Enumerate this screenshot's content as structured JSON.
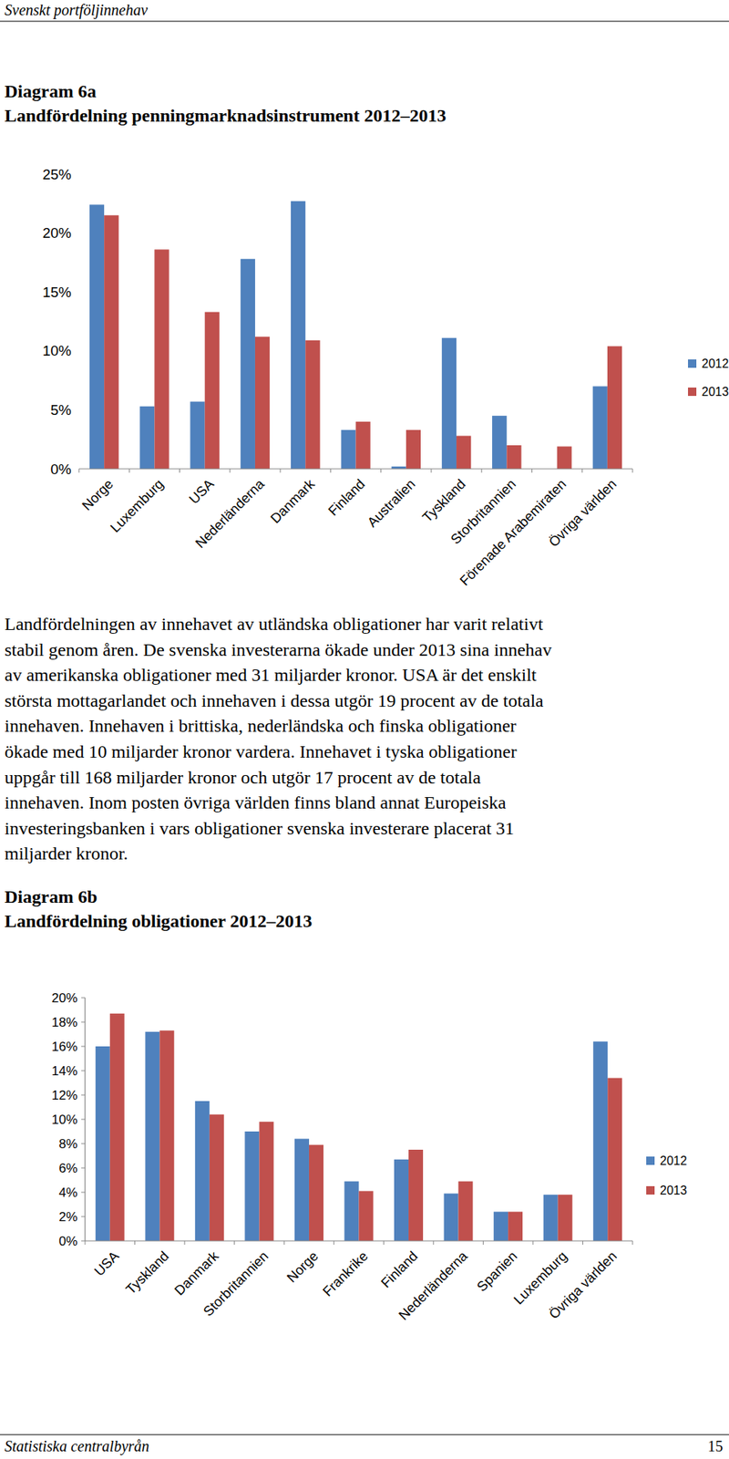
{
  "header": "Svenskt portföljinnehav",
  "chart_data": [
    {
      "type": "bar",
      "title": "Diagram 6a",
      "subtitle": "Landfördelning penningmarknadsinstrument 2012–2013",
      "categories": [
        "Norge",
        "Luxemburg",
        "USA",
        "Nederländerna",
        "Danmark",
        "Finland",
        "Australien",
        "Tyskland",
        "Storbritannien",
        "Förenade Arabemiraten",
        "Övriga världen"
      ],
      "series": [
        {
          "name": "2012",
          "color": "#4f81bd",
          "values": [
            22.4,
            5.3,
            5.7,
            17.8,
            22.7,
            3.3,
            0.2,
            11.1,
            4.5,
            0,
            7.0
          ]
        },
        {
          "name": "2013",
          "color": "#c0504d",
          "values": [
            21.5,
            18.6,
            13.3,
            11.2,
            10.9,
            4.0,
            3.3,
            2.8,
            2.0,
            1.9,
            10.4
          ]
        }
      ],
      "ylim": [
        0,
        25
      ],
      "yticks": [
        {
          "value": 0,
          "label": "0%"
        },
        {
          "value": 5,
          "label": "5%"
        },
        {
          "value": 10,
          "label": "10%"
        },
        {
          "value": 15,
          "label": "15%"
        },
        {
          "value": 20,
          "label": "20%"
        },
        {
          "value": 25,
          "label": "25%"
        }
      ],
      "grid": false,
      "legend": "right"
    },
    {
      "type": "bar",
      "title": "Diagram 6b",
      "subtitle": "Landfördelning obligationer 2012–2013",
      "categories": [
        "USA",
        "Tyskland",
        "Danmark",
        "Storbritannien",
        "Norge",
        "Frankrike",
        "Finland",
        "Nederländerna",
        "Spanien",
        "Luxemburg",
        "Övriga världen"
      ],
      "series": [
        {
          "name": "2012",
          "color": "#4f81bd",
          "values": [
            16.0,
            17.2,
            11.5,
            9.0,
            8.4,
            4.9,
            6.7,
            3.9,
            2.4,
            3.8,
            16.4
          ]
        },
        {
          "name": "2013",
          "color": "#c0504d",
          "values": [
            18.7,
            17.3,
            10.4,
            9.8,
            7.9,
            4.1,
            7.5,
            4.9,
            2.4,
            3.8,
            13.4
          ]
        }
      ],
      "ylim": [
        0,
        20
      ],
      "yticks": [
        {
          "value": 0,
          "label": "0%"
        },
        {
          "value": 2,
          "label": "2%"
        },
        {
          "value": 4,
          "label": "4%"
        },
        {
          "value": 6,
          "label": "6%"
        },
        {
          "value": 8,
          "label": "8%"
        },
        {
          "value": 10,
          "label": "10%"
        },
        {
          "value": 12,
          "label": "12%"
        },
        {
          "value": 14,
          "label": "14%"
        },
        {
          "value": 16,
          "label": "16%"
        },
        {
          "value": 18,
          "label": "18%"
        },
        {
          "value": 20,
          "label": "20%"
        }
      ],
      "grid": false,
      "legend": "right"
    }
  ],
  "text": [
    "Landfördelningen av innehavet av utländska obligationer har varit relativt",
    "stabil genom åren. De svenska investerarna ökade under 2013 sina innehav",
    "av amerikanska obligationer med 31 miljarder kronor. USA är det enskilt",
    "största mottagarlandet och innehaven i dessa utgör 19 procent av de totala",
    "innehaven. Innehaven i brittiska, nederländska och finska obligationer",
    "ökade med 10 miljarder kronor vardera. Innehavet i tyska obligationer",
    "uppgår till 168 miljarder kronor och utgör 17 procent av de totala",
    "innehaven. Inom posten övriga världen finns bland annat Europeiska",
    "investeringsbanken i vars obligationer svenska investerare placerat 31",
    "miljarder kronor."
  ],
  "footer": {
    "left": "Statistiska centralbyrån",
    "page": "15"
  }
}
